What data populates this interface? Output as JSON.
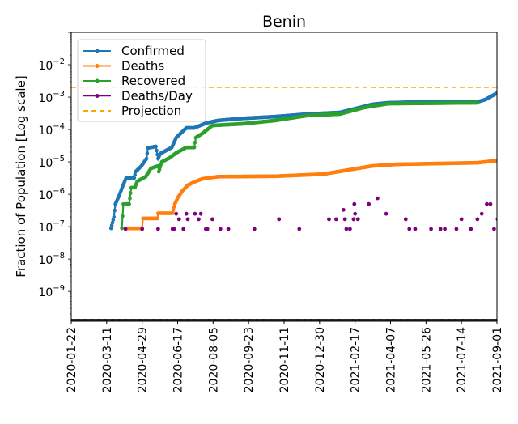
{
  "chart_data": {
    "type": "line",
    "title": "Benin",
    "xlabel": "",
    "ylabel": "Fraction of Population [Log scale]",
    "yscale": "log",
    "ylim": [
      1.2e-10,
      0.1
    ],
    "x_unit": "days since 2020-01-22",
    "xlim": [
      0,
      588
    ],
    "xticks": [
      0,
      49,
      98,
      147,
      196,
      245,
      294,
      343,
      392,
      441,
      490,
      539,
      588
    ],
    "xtick_labels": [
      "2020-01-22",
      "2020-03-11",
      "2020-04-29",
      "2020-06-17",
      "2020-08-05",
      "2020-09-23",
      "2020-11-11",
      "2020-12-30",
      "2021-02-17",
      "2021-04-07",
      "2021-05-26",
      "2021-07-14",
      "2021-09-01"
    ],
    "yticks": [
      0.01,
      0.001,
      0.0001,
      1e-05,
      1e-06,
      1e-07,
      1e-08,
      1e-09
    ],
    "ytick_labels": [
      {
        "base": "10",
        "exp": "−2"
      },
      {
        "base": "10",
        "exp": "−3"
      },
      {
        "base": "10",
        "exp": "−4"
      },
      {
        "base": "10",
        "exp": "−5"
      },
      {
        "base": "10",
        "exp": "−6"
      },
      {
        "base": "10",
        "exp": "−7"
      },
      {
        "base": "10",
        "exp": "−8"
      },
      {
        "base": "10",
        "exp": "−9"
      }
    ],
    "grid": false,
    "legend_position": "top-left",
    "series": [
      {
        "name": "Confirmed",
        "color": "#1f77b4",
        "style": "line-marker",
        "points": [
          [
            55,
            8.9e-08
          ],
          [
            59,
            2e-07
          ],
          [
            61,
            5e-07
          ],
          [
            67,
            1e-06
          ],
          [
            72,
            2e-06
          ],
          [
            76,
            3.2e-06
          ],
          [
            87,
            3.2e-06
          ],
          [
            89,
            5e-06
          ],
          [
            97,
            7.5e-06
          ],
          [
            104,
            1.26e-05
          ],
          [
            106,
            2.7e-05
          ],
          [
            117,
            3e-05
          ],
          [
            120,
            1.26e-05
          ],
          [
            123,
            1.8e-05
          ],
          [
            139,
            2.8e-05
          ],
          [
            145,
            5.6e-05
          ],
          [
            159,
            0.000112
          ],
          [
            170,
            0.000112
          ],
          [
            187,
            0.00016
          ],
          [
            203,
            0.00019
          ],
          [
            237,
            0.00022
          ],
          [
            282,
            0.00025
          ],
          [
            326,
            0.0003
          ],
          [
            371,
            0.000335
          ],
          [
            394,
            0.00045
          ],
          [
            416,
            0.0006
          ],
          [
            438,
            0.00067
          ],
          [
            483,
            0.00071
          ],
          [
            561,
            0.00071
          ],
          [
            572,
            0.00084
          ],
          [
            588,
            0.00133
          ]
        ]
      },
      {
        "name": "Deaths",
        "color": "#ff7f0e",
        "style": "line-marker",
        "points": [
          [
            75,
            8.9e-08
          ],
          [
            98,
            8.9e-08
          ],
          [
            99,
            1.8e-07
          ],
          [
            119,
            1.8e-07
          ],
          [
            120,
            2.6e-07
          ],
          [
            140,
            2.6e-07
          ],
          [
            143,
            5e-07
          ],
          [
            148,
            8.4e-07
          ],
          [
            154,
            1.3e-06
          ],
          [
            161,
            1.9e-06
          ],
          [
            170,
            2.4e-06
          ],
          [
            181,
            3e-06
          ],
          [
            203,
            3.5e-06
          ],
          [
            282,
            3.6e-06
          ],
          [
            349,
            4.2e-06
          ],
          [
            382,
            5.6e-06
          ],
          [
            416,
            7.5e-06
          ],
          [
            449,
            8.4e-06
          ],
          [
            561,
            9.4e-06
          ],
          [
            588,
            1.1e-05
          ]
        ]
      },
      {
        "name": "Recovered",
        "color": "#2ca02c",
        "style": "line-marker",
        "points": [
          [
            70,
            8.9e-08
          ],
          [
            72,
            5e-07
          ],
          [
            80,
            5e-07
          ],
          [
            83,
            1.6e-06
          ],
          [
            88,
            1.6e-06
          ],
          [
            91,
            2.5e-06
          ],
          [
            103,
            3.5e-06
          ],
          [
            110,
            6.3e-06
          ],
          [
            120,
            7.5e-06
          ],
          [
            121,
            5e-06
          ],
          [
            125,
            1e-05
          ],
          [
            136,
            1.33e-05
          ],
          [
            145,
            1.9e-05
          ],
          [
            159,
            2.8e-05
          ],
          [
            170,
            2.8e-05
          ],
          [
            172,
            5.6e-05
          ],
          [
            181,
            7.5e-05
          ],
          [
            195,
            0.000133
          ],
          [
            237,
            0.00015
          ],
          [
            282,
            0.00019
          ],
          [
            326,
            0.00027
          ],
          [
            371,
            0.0003
          ],
          [
            405,
            0.00048
          ],
          [
            438,
            0.00063
          ],
          [
            561,
            0.00067
          ]
        ]
      },
      {
        "name": "Deaths/Day",
        "color": "#800080",
        "style": "marker",
        "points": [
          [
            75,
            8.5e-08
          ],
          [
            98,
            8.5e-08
          ],
          [
            120,
            8.5e-08
          ],
          [
            140,
            8.5e-08
          ],
          [
            142,
            8.5e-08
          ],
          [
            155,
            8.5e-08
          ],
          [
            186,
            8.5e-08
          ],
          [
            188,
            8.5e-08
          ],
          [
            206,
            8.5e-08
          ],
          [
            217,
            8.5e-08
          ],
          [
            253,
            8.5e-08
          ],
          [
            315,
            8.5e-08
          ],
          [
            380,
            8.5e-08
          ],
          [
            385,
            8.5e-08
          ],
          [
            467,
            8.5e-08
          ],
          [
            475,
            8.5e-08
          ],
          [
            497,
            8.5e-08
          ],
          [
            510,
            8.5e-08
          ],
          [
            516,
            8.5e-08
          ],
          [
            532,
            8.5e-08
          ],
          [
            552,
            8.5e-08
          ],
          [
            584,
            8.5e-08
          ],
          [
            149,
            1.7e-07
          ],
          [
            161,
            1.7e-07
          ],
          [
            176,
            1.7e-07
          ],
          [
            195,
            1.7e-07
          ],
          [
            287,
            1.7e-07
          ],
          [
            356,
            1.7e-07
          ],
          [
            366,
            1.7e-07
          ],
          [
            378,
            1.7e-07
          ],
          [
            390,
            1.7e-07
          ],
          [
            396,
            1.7e-07
          ],
          [
            462,
            1.7e-07
          ],
          [
            539,
            1.7e-07
          ],
          [
            561,
            1.7e-07
          ],
          [
            589,
            1.7e-07
          ],
          [
            145,
            2.5e-07
          ],
          [
            159,
            2.5e-07
          ],
          [
            171,
            2.5e-07
          ],
          [
            179,
            2.5e-07
          ],
          [
            392,
            2.5e-07
          ],
          [
            435,
            2.5e-07
          ],
          [
            567,
            2.5e-07
          ],
          [
            376,
            3.3e-07
          ],
          [
            391,
            5e-07
          ],
          [
            411,
            5e-07
          ],
          [
            574,
            5e-07
          ],
          [
            579,
            5e-07
          ],
          [
            423,
            7.5e-07
          ]
        ]
      },
      {
        "name": "Projection",
        "color": "#ffa500",
        "style": "dashed",
        "value": 0.002
      }
    ]
  }
}
